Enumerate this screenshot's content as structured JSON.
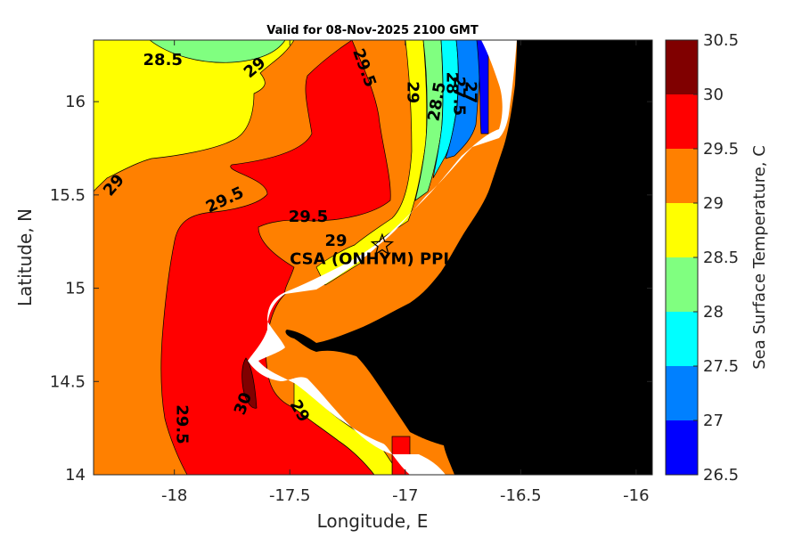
{
  "chart_data": {
    "type": "heatmap",
    "title": "Valid for 08-Nov-2025 2100 GMT",
    "xlabel": "Longitude, E",
    "ylabel": "Latitude, N",
    "xlim": [
      -18.35,
      -15.93
    ],
    "ylim": [
      14.0,
      16.33
    ],
    "xticks": [
      -18,
      -17.5,
      -17,
      -16.5,
      -16
    ],
    "yticks": [
      14,
      14.5,
      15,
      15.5,
      16
    ],
    "xtick_labels": [
      "-18",
      "-17.5",
      "-17",
      "-16.5",
      "-16"
    ],
    "ytick_labels": [
      "14",
      "14.5",
      "15",
      "15.5",
      "16"
    ],
    "colorbar": {
      "label": "Sea Surface Temperature, C",
      "levels": [
        26.5,
        27,
        27.5,
        28,
        28.5,
        29,
        29.5,
        30,
        30.5
      ],
      "tick_labels": [
        "26.5",
        "27",
        "27.5",
        "28",
        "28.5",
        "29",
        "29.5",
        "30",
        "30.5"
      ],
      "colors": [
        "#0000ff",
        "#0080ff",
        "#00ffff",
        "#80ff80",
        "#ffff00",
        "#ff8000",
        "#ff0000",
        "#800000"
      ]
    },
    "contour_labels": [
      {
        "text": "28.5",
        "lon": -18.05,
        "lat": 16.22,
        "angle": 0
      },
      {
        "text": "29",
        "lon": -17.65,
        "lat": 16.18,
        "angle": -40
      },
      {
        "text": "29.5",
        "lon": -17.18,
        "lat": 16.18,
        "angle": 70
      },
      {
        "text": "29",
        "lon": -16.97,
        "lat": 16.05,
        "angle": 90
      },
      {
        "text": "28.5",
        "lon": -16.86,
        "lat": 16.0,
        "angle": -80
      },
      {
        "text": "28",
        "lon": -16.8,
        "lat": 16.1,
        "angle": 90
      },
      {
        "text": "27.5",
        "lon": -16.77,
        "lat": 16.03,
        "angle": 90
      },
      {
        "text": "27",
        "lon": -16.72,
        "lat": 16.05,
        "angle": 90
      },
      {
        "text": "29",
        "lon": -18.26,
        "lat": 15.55,
        "angle": -50
      },
      {
        "text": "29.5",
        "lon": -17.78,
        "lat": 15.47,
        "angle": -25
      },
      {
        "text": "29.5",
        "lon": -17.42,
        "lat": 15.38,
        "angle": 0
      },
      {
        "text": "29",
        "lon": -17.3,
        "lat": 15.25,
        "angle": 0
      },
      {
        "text": "30",
        "lon": -17.7,
        "lat": 14.38,
        "angle": -70
      },
      {
        "text": "29.5",
        "lon": -17.97,
        "lat": 14.27,
        "angle": 90
      },
      {
        "text": "29",
        "lon": -17.46,
        "lat": 14.34,
        "angle": 60
      }
    ],
    "station": {
      "label": "CSA (ONHYM) PPL EP",
      "lon": -17.1,
      "lat": 15.23
    }
  }
}
